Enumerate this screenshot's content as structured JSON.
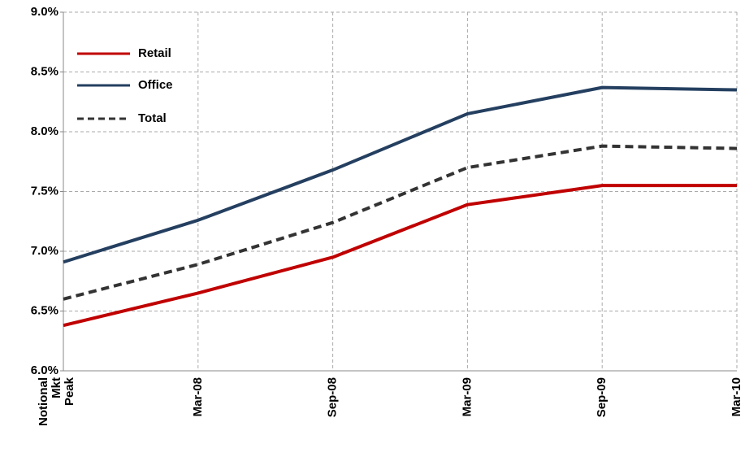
{
  "chart_data": {
    "type": "line",
    "categories": [
      "Notional Mkt Peak",
      "Mar-08",
      "Sep-08",
      "Mar-09",
      "Sep-09",
      "Mar-10"
    ],
    "series": [
      {
        "name": "Retail",
        "color": "#c00000",
        "dash": false,
        "values": [
          6.38,
          6.65,
          6.95,
          7.39,
          7.55,
          7.55
        ]
      },
      {
        "name": "Office",
        "color": "#243f60",
        "dash": false,
        "values": [
          6.91,
          7.26,
          7.68,
          8.15,
          8.37,
          8.35
        ]
      },
      {
        "name": "Total",
        "color": "#333333",
        "dash": true,
        "values": [
          6.6,
          6.89,
          7.24,
          7.7,
          7.88,
          7.86
        ]
      }
    ],
    "ylim": [
      6.0,
      9.0
    ],
    "yticks": [
      {
        "value": 6.0,
        "label": "6.0%"
      },
      {
        "value": 6.5,
        "label": "6.5%"
      },
      {
        "value": 7.0,
        "label": "7.0%"
      },
      {
        "value": 7.5,
        "label": "7.5%"
      },
      {
        "value": 8.0,
        "label": "8.0%"
      },
      {
        "value": 8.5,
        "label": "8.5%"
      },
      {
        "value": 9.0,
        "label": "9.0%"
      }
    ],
    "grid": true,
    "legend": "upper left"
  }
}
